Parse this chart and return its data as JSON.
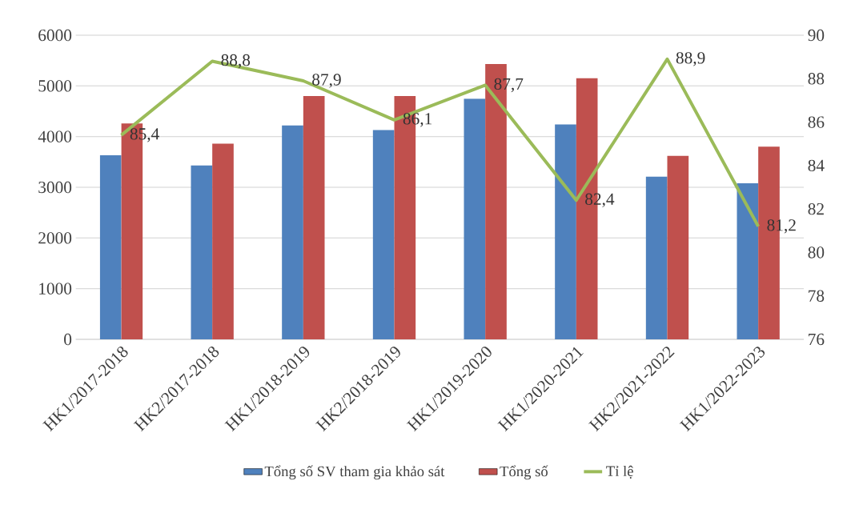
{
  "chart_data": {
    "type": "bar",
    "categories": [
      "HK1/2017-2018",
      "HK2/2017-2018",
      "HK1/2018-2019",
      "HK2/2018-2019",
      "HK1/2019-2020",
      "HK1/2020-2021",
      "HK2/2021-2022",
      "HK1/2022-2023"
    ],
    "series": [
      {
        "name": "Tổng số SV tham gia khảo sát",
        "color": "#4f81bd",
        "values": [
          3630,
          3430,
          4220,
          4130,
          4750,
          4240,
          3210,
          3080
        ]
      },
      {
        "name": "Tổng số",
        "color": "#c0504d",
        "values": [
          4260,
          3860,
          4800,
          4800,
          5430,
          5150,
          3620,
          3800
        ]
      },
      {
        "name": "Tỉ lệ",
        "color": "#9bbb59",
        "type": "line",
        "axis": "y2",
        "values": [
          85.4,
          88.8,
          87.9,
          86.1,
          87.7,
          82.4,
          88.9,
          81.2
        ],
        "value_labels": [
          "85,4",
          "88,8",
          "87,9",
          "86,1",
          "87,7",
          "82,4",
          "88,9",
          "81,2"
        ]
      }
    ],
    "ylim": [
      0,
      6000
    ],
    "yticks": [
      0,
      1000,
      2000,
      3000,
      4000,
      5000,
      6000
    ],
    "y2lim": [
      76,
      90
    ],
    "y2ticks": [
      76,
      78,
      80,
      82,
      84,
      86,
      88,
      90
    ],
    "grid": "y",
    "legend": "bottom"
  }
}
